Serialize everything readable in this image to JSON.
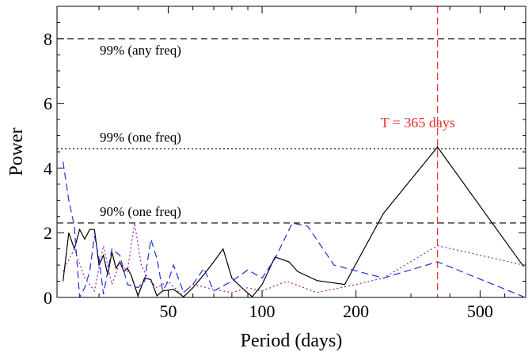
{
  "chart_data": {
    "type": "line",
    "xlabel": "Period (days)",
    "ylabel": "Power",
    "xscale": "log",
    "xlim": [
      22,
      700
    ],
    "ylim": [
      0,
      9
    ],
    "x_ticks_major": [
      50,
      100,
      200,
      500
    ],
    "x_ticks_minor": [
      30,
      40,
      60,
      70,
      80,
      90,
      300,
      400,
      600,
      700
    ],
    "y_ticks_major": [
      0,
      2,
      4,
      6,
      8
    ],
    "grid": false,
    "thresholds": [
      {
        "label": "99% (any freq)",
        "y": 8.0,
        "style": "dashed",
        "color": "#000000"
      },
      {
        "label": "99% (one freq)",
        "y": 4.6,
        "style": "dotted",
        "color": "#000000"
      },
      {
        "label": "90% (one freq)",
        "y": 2.3,
        "style": "dashed",
        "color": "#000000"
      }
    ],
    "marker": {
      "label": "T = 365 days",
      "x": 365,
      "color": "#e8312f",
      "style": "dashed"
    },
    "series": [
      {
        "color": "#000000",
        "style": "solid",
        "x": [
          23,
          24,
          25,
          26,
          27,
          28,
          29,
          30,
          31,
          32,
          33,
          34,
          35,
          36,
          37,
          38,
          40,
          42,
          44,
          46,
          48,
          52,
          56,
          60,
          65,
          70,
          75,
          80,
          86,
          93,
          100,
          110,
          122,
          130,
          150,
          184,
          245,
          365,
          690
        ],
        "y": [
          0.5,
          2.0,
          1.5,
          2.1,
          1.8,
          2.1,
          2.1,
          1.0,
          1.3,
          0.7,
          1.4,
          0.9,
          1.1,
          0.8,
          0.9,
          0.7,
          0.05,
          0.6,
          0.55,
          0.05,
          0.2,
          0.25,
          0.02,
          0.3,
          0.7,
          1.1,
          1.5,
          0.6,
          0.3,
          0.02,
          0.4,
          1.25,
          1.1,
          0.8,
          0.52,
          0.4,
          2.6,
          4.65,
          0.95
        ]
      },
      {
        "color": "#1f2fd6",
        "style": "dashed",
        "x": [
          23,
          24,
          25,
          26,
          27,
          28,
          29,
          30,
          31,
          33,
          35,
          37,
          40,
          42,
          44,
          46,
          48,
          50,
          52,
          56,
          60,
          65,
          70,
          80,
          90,
          100,
          110,
          125,
          140,
          170,
          245,
          365,
          690
        ],
        "y": [
          4.2,
          3.0,
          2.2,
          0.0,
          0.3,
          0.8,
          1.9,
          1.2,
          0.1,
          1.5,
          1.3,
          0.4,
          0.3,
          0.5,
          1.8,
          1.2,
          0.2,
          0.5,
          1.0,
          0.15,
          0.4,
          0.9,
          0.2,
          0.5,
          0.85,
          0.6,
          1.2,
          2.3,
          2.2,
          1.0,
          0.6,
          1.1,
          0.02
        ]
      },
      {
        "color": "#a020a8",
        "style": "dotted",
        "x": [
          23,
          25,
          27,
          29,
          31,
          33,
          35,
          37,
          39,
          41,
          43,
          46,
          50,
          55,
          60,
          70,
          80,
          90,
          100,
          120,
          150,
          200,
          245,
          365,
          690
        ],
        "y": [
          0.8,
          1.5,
          0.6,
          0.2,
          1.6,
          0.4,
          1.1,
          0.8,
          2.3,
          1.0,
          0.6,
          0.3,
          0.5,
          0.1,
          0.4,
          0.25,
          0.15,
          0.3,
          0.2,
          0.5,
          0.15,
          0.4,
          0.6,
          1.6,
          1.0
        ]
      }
    ]
  }
}
